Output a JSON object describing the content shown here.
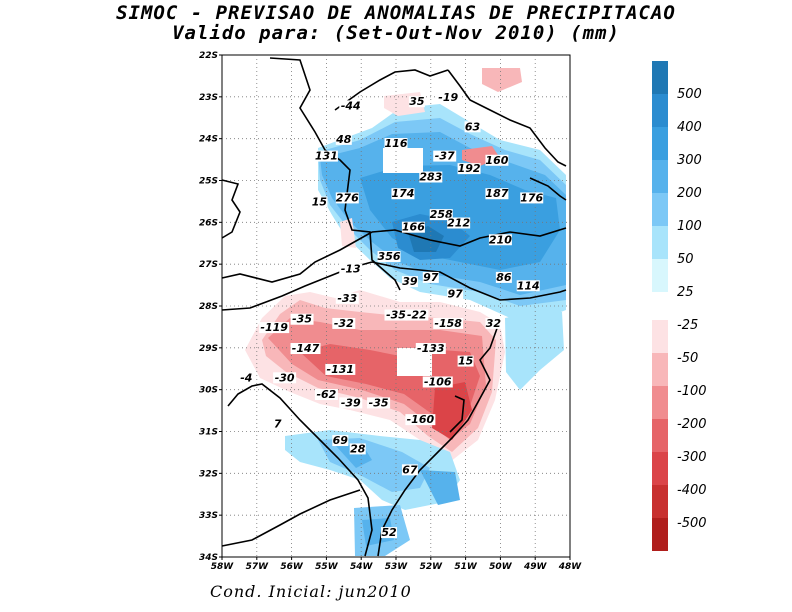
{
  "title": "SIMOC - PREVISAO DE ANOMALIAS DE PRECIPITACAO",
  "subtitle": "Valido para: (Set-Out-Nov 2010) (mm)",
  "footer": "Cond. Inicial: jun2010",
  "axes": {
    "lat_labels": [
      "22S",
      "23S",
      "24S",
      "25S",
      "26S",
      "27S",
      "28S",
      "29S",
      "30S",
      "31S",
      "32S",
      "33S",
      "34S"
    ],
    "lon_labels": [
      "58W",
      "57W",
      "56W",
      "55W",
      "54W",
      "53W",
      "52W",
      "51W",
      "50W",
      "49W",
      "48W"
    ]
  },
  "colorbar": {
    "positive": [
      {
        "label": "500",
        "color": "#1f78b4"
      },
      {
        "label": "400",
        "color": "#2b8cd0"
      },
      {
        "label": "300",
        "color": "#3a9fe0"
      },
      {
        "label": "200",
        "color": "#56b2ec"
      },
      {
        "label": "100",
        "color": "#7cc8f6"
      },
      {
        "label": "50",
        "color": "#a8e4fb"
      },
      {
        "label": "25",
        "color": "#d8f7fd"
      }
    ],
    "negative": [
      {
        "label": "-25",
        "color": "#fde2e4"
      },
      {
        "label": "-50",
        "color": "#f8b7b9"
      },
      {
        "label": "-100",
        "color": "#f08c8f"
      },
      {
        "label": "-200",
        "color": "#e66468"
      },
      {
        "label": "-300",
        "color": "#db4448"
      },
      {
        "label": "-400",
        "color": "#c8302f"
      },
      {
        "label": "-500",
        "color": "#b01e1c"
      }
    ]
  },
  "map_values": [
    {
      "text": "-44",
      "lon": 54.3,
      "lat": 23.3
    },
    {
      "text": "35",
      "lon": 52.4,
      "lat": 23.2
    },
    {
      "text": "-19",
      "lon": 51.5,
      "lat": 23.1
    },
    {
      "text": "63",
      "lon": 50.8,
      "lat": 23.8
    },
    {
      "text": "48",
      "lon": 54.5,
      "lat": 24.1
    },
    {
      "text": "116",
      "lon": 53.0,
      "lat": 24.2
    },
    {
      "text": "131",
      "lon": 55.0,
      "lat": 24.5
    },
    {
      "text": "-37",
      "lon": 51.6,
      "lat": 24.5
    },
    {
      "text": "160",
      "lon": 50.1,
      "lat": 24.6
    },
    {
      "text": "192",
      "lon": 50.9,
      "lat": 24.8
    },
    {
      "text": "283",
      "lon": 52.0,
      "lat": 25.0
    },
    {
      "text": "15",
      "lon": 55.2,
      "lat": 25.6
    },
    {
      "text": "276",
      "lon": 54.4,
      "lat": 25.5
    },
    {
      "text": "174",
      "lon": 52.8,
      "lat": 25.4
    },
    {
      "text": "187",
      "lon": 50.1,
      "lat": 25.4
    },
    {
      "text": "176",
      "lon": 49.1,
      "lat": 25.5
    },
    {
      "text": "258",
      "lon": 51.7,
      "lat": 25.9
    },
    {
      "text": "212",
      "lon": 51.2,
      "lat": 26.1
    },
    {
      "text": "166",
      "lon": 52.5,
      "lat": 26.2
    },
    {
      "text": "210",
      "lon": 50.0,
      "lat": 26.5
    },
    {
      "text": "356",
      "lon": 53.2,
      "lat": 26.9
    },
    {
      "text": "-13",
      "lon": 54.3,
      "lat": 27.2
    },
    {
      "text": "39",
      "lon": 52.6,
      "lat": 27.5
    },
    {
      "text": "97",
      "lon": 52.0,
      "lat": 27.4
    },
    {
      "text": "86",
      "lon": 49.9,
      "lat": 27.4
    },
    {
      "text": "114",
      "lon": 49.2,
      "lat": 27.6
    },
    {
      "text": "97",
      "lon": 51.3,
      "lat": 27.8
    },
    {
      "text": "-33",
      "lon": 54.4,
      "lat": 27.9
    },
    {
      "text": "-35",
      "lon": 55.7,
      "lat": 28.4
    },
    {
      "text": "-35",
      "lon": 53.0,
      "lat": 28.3
    },
    {
      "text": "-22",
      "lon": 52.4,
      "lat": 28.3
    },
    {
      "text": "-158",
      "lon": 51.5,
      "lat": 28.5
    },
    {
      "text": "-119",
      "lon": 56.5,
      "lat": 28.6
    },
    {
      "text": "-32",
      "lon": 54.5,
      "lat": 28.5
    },
    {
      "text": "32",
      "lon": 50.2,
      "lat": 28.5
    },
    {
      "text": "-147",
      "lon": 55.6,
      "lat": 29.1
    },
    {
      "text": "-133",
      "lon": 52.0,
      "lat": 29.1
    },
    {
      "text": "15",
      "lon": 51.0,
      "lat": 29.4
    },
    {
      "text": "-4",
      "lon": 57.3,
      "lat": 29.8
    },
    {
      "text": "-30",
      "lon": 56.2,
      "lat": 29.8
    },
    {
      "text": "-131",
      "lon": 54.6,
      "lat": 29.6
    },
    {
      "text": "-106",
      "lon": 51.8,
      "lat": 29.9
    },
    {
      "text": "-62",
      "lon": 55.0,
      "lat": 30.2
    },
    {
      "text": "-39",
      "lon": 54.3,
      "lat": 30.4
    },
    {
      "text": "-35",
      "lon": 53.5,
      "lat": 30.4
    },
    {
      "text": "-160",
      "lon": 52.3,
      "lat": 30.8
    },
    {
      "text": "7",
      "lon": 56.4,
      "lat": 30.9
    },
    {
      "text": "69",
      "lon": 54.6,
      "lat": 31.3
    },
    {
      "text": "28",
      "lon": 54.1,
      "lat": 31.5
    },
    {
      "text": "67",
      "lon": 52.6,
      "lat": 32.0
    },
    {
      "text": "52",
      "lon": 53.2,
      "lat": 33.5
    }
  ]
}
